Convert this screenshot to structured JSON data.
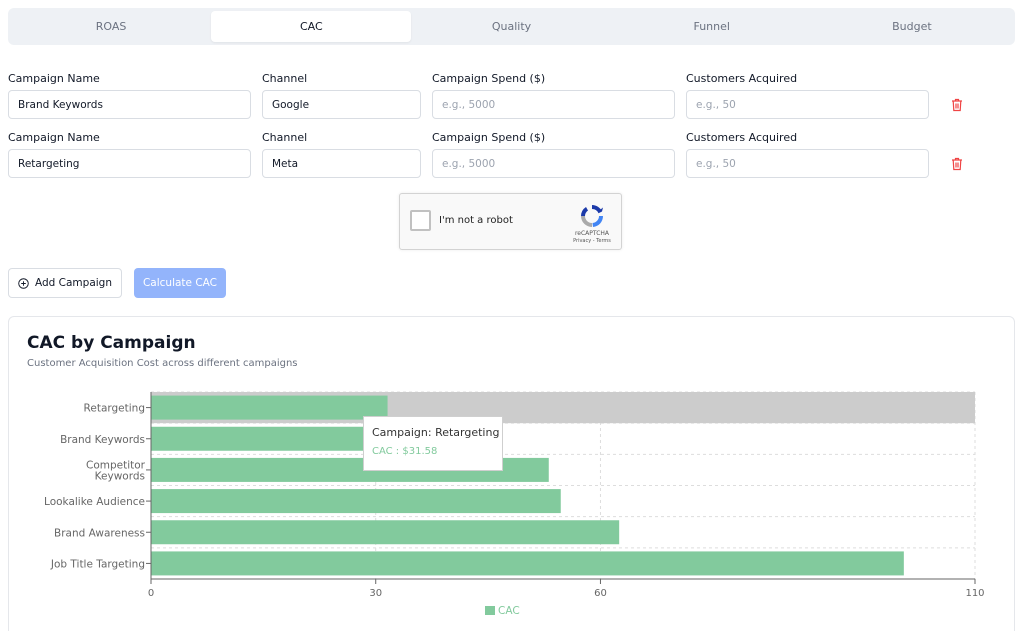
{
  "tabs": [
    {
      "label": "ROAS",
      "active": false
    },
    {
      "label": "CAC",
      "active": true
    },
    {
      "label": "Quality",
      "active": false
    },
    {
      "label": "Funnel",
      "active": false
    },
    {
      "label": "Budget",
      "active": false
    }
  ],
  "form": {
    "labels": {
      "campaign_name": "Campaign Name",
      "channel": "Channel",
      "spend": "Campaign Spend ($)",
      "customers": "Customers Acquired"
    },
    "rows": [
      {
        "campaign_name": "Brand Keywords",
        "channel": "Google",
        "spend_placeholder": "e.g., 5000",
        "customers_placeholder": "e.g., 50"
      },
      {
        "campaign_name": "Retargeting",
        "channel": "Meta",
        "spend_placeholder": "e.g., 5000",
        "customers_placeholder": "e.g., 50"
      }
    ]
  },
  "captcha": {
    "label": "I'm not a robot",
    "brand": "reCAPTCHA",
    "terms": "Privacy - Terms"
  },
  "buttons": {
    "add": "Add Campaign",
    "calculate": "Calculate CAC"
  },
  "card": {
    "title": "CAC by Campaign",
    "subtitle": "Customer Acquisition Cost across different campaigns"
  },
  "tooltip": {
    "title": "Campaign: Retargeting",
    "value": "CAC : $31.58"
  },
  "colors": {
    "bar": "#82ca9d",
    "hover": "#cccccc",
    "delete": "#ef4444"
  },
  "chart_data": {
    "type": "bar",
    "orientation": "horizontal",
    "categories": [
      "Retargeting",
      "Brand Keywords",
      "Competitor Keywords",
      "Lookalike Audience",
      "Brand Awareness",
      "Job Title Targeting"
    ],
    "category_lines": [
      [
        "Retargeting"
      ],
      [
        "Brand Keywords"
      ],
      [
        "Competitor",
        "Keywords"
      ],
      [
        "Lookalike Audience"
      ],
      [
        "Brand Awareness"
      ],
      [
        "Job Title Targeting"
      ]
    ],
    "series": [
      {
        "name": "CAC",
        "values": [
          31.58,
          30.5,
          53.1,
          54.7,
          62.5,
          100.5
        ]
      }
    ],
    "xlim": [
      0,
      110
    ],
    "xticks": [
      "0",
      "30",
      "60",
      "110"
    ],
    "xtick_values": [
      0,
      30,
      60,
      110
    ],
    "highlighted_category": "Retargeting",
    "legend": "bottom",
    "grid": true
  }
}
